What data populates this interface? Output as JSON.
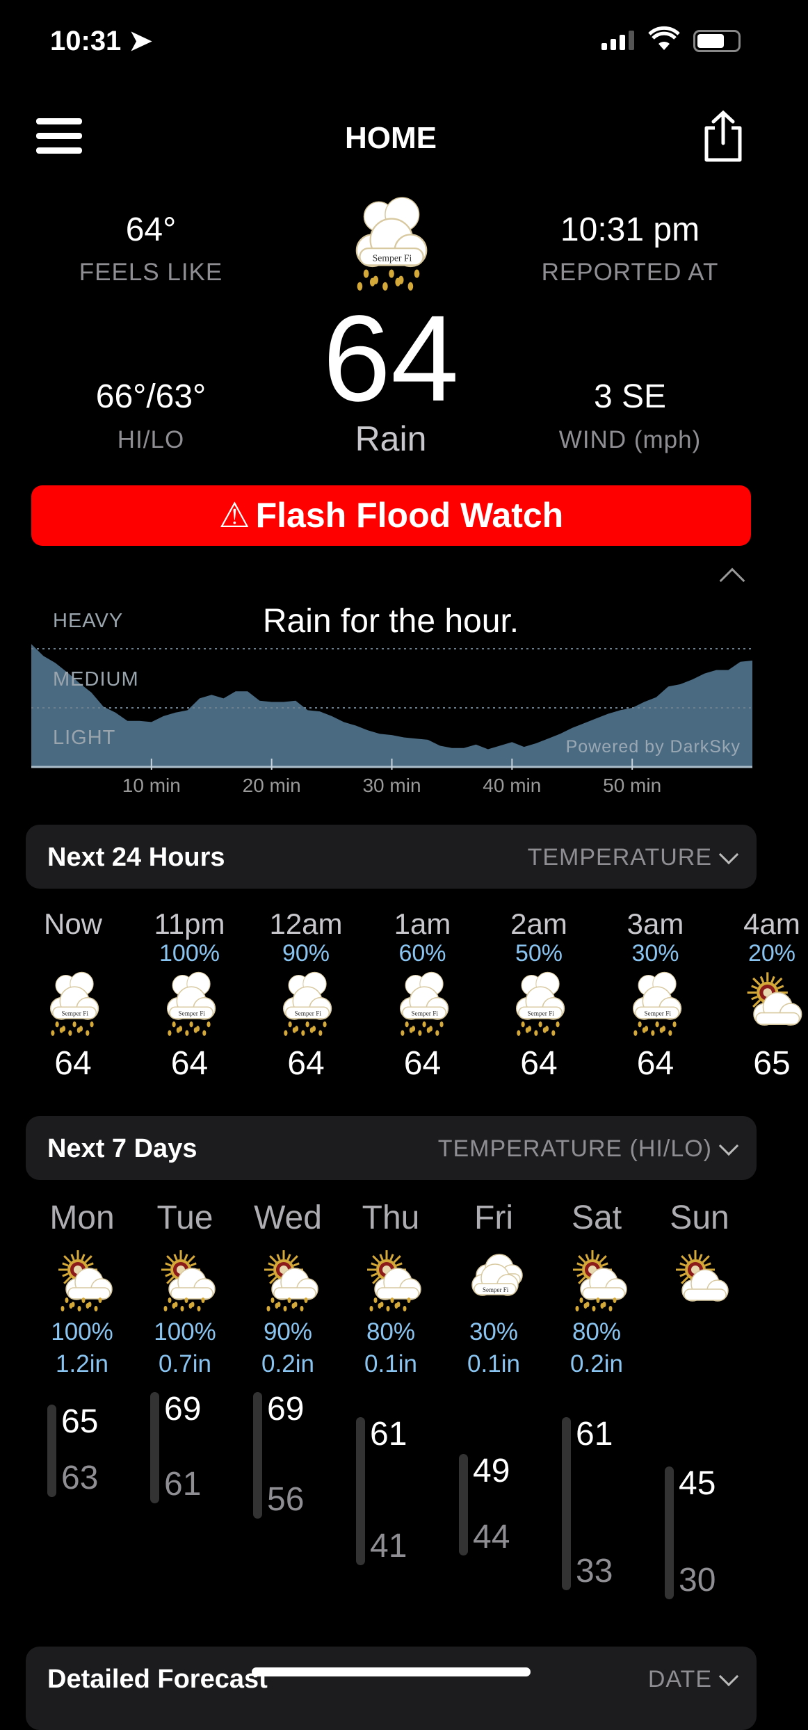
{
  "status_bar": {
    "time": "10:31",
    "icons": [
      "location-arrow-icon",
      "signal-icon",
      "wifi-icon",
      "battery-icon"
    ]
  },
  "header": {
    "title": "HOME",
    "menu_icon": "hamburger-menu-icon",
    "share_icon": "share-icon"
  },
  "current": {
    "feels_like": "64°",
    "feels_like_label": "FEELS LIKE",
    "reported_at": "10:31 pm",
    "reported_at_label": "REPORTED AT",
    "temperature": "64",
    "condition": "Rain",
    "icon": "rain-cloud",
    "hi_lo": "66°/63°",
    "hi_lo_label": "HI/LO",
    "wind": "3 SE",
    "wind_label": "WIND (mph)"
  },
  "icon_logo_text": "Semper Fi",
  "alert": {
    "icon": "warning-triangle-icon",
    "symbol": "⚠",
    "text": "Flash Flood Watch",
    "color": "#ff0000"
  },
  "precip_chart": {
    "chart_data": {
      "type": "area",
      "title": "Rain for the hour.",
      "y_levels": [
        "HEAVY",
        "MEDIUM",
        "LIGHT"
      ],
      "x_ticks": [
        "10 min",
        "20 min",
        "30 min",
        "40 min",
        "50 min"
      ],
      "x": [
        0,
        1,
        2,
        3,
        4,
        5,
        6,
        7,
        8,
        9,
        10,
        11,
        12,
        13,
        14,
        15,
        16,
        17,
        18,
        19,
        20,
        21,
        22,
        23,
        24,
        25,
        26,
        27,
        28,
        29,
        30,
        31,
        32,
        33,
        34,
        35,
        36,
        37,
        38,
        39,
        40,
        41,
        42,
        43,
        44,
        45,
        46,
        47,
        48,
        49,
        50,
        51,
        52,
        53,
        54,
        55,
        56,
        57,
        58,
        59,
        60
      ],
      "intensity": [
        1.04,
        0.94,
        0.88,
        0.8,
        0.71,
        0.63,
        0.51,
        0.46,
        0.39,
        0.39,
        0.38,
        0.43,
        0.46,
        0.48,
        0.58,
        0.61,
        0.58,
        0.64,
        0.64,
        0.56,
        0.55,
        0.55,
        0.56,
        0.48,
        0.47,
        0.43,
        0.38,
        0.35,
        0.31,
        0.28,
        0.27,
        0.25,
        0.24,
        0.23,
        0.18,
        0.16,
        0.16,
        0.19,
        0.15,
        0.18,
        0.21,
        0.17,
        0.2,
        0.24,
        0.28,
        0.33,
        0.37,
        0.41,
        0.45,
        0.48,
        0.5,
        0.55,
        0.59,
        0.68,
        0.7,
        0.74,
        0.79,
        0.82,
        0.82,
        0.89,
        0.9
      ],
      "xlim": [
        0,
        60
      ],
      "fill_color": "#4a6a82",
      "credit": "Powered by DarkSky"
    },
    "collapse_icon": "chevron-up-icon"
  },
  "hourly": {
    "title": "Next 24 Hours",
    "selector": "TEMPERATURE",
    "items": [
      {
        "label": "Now",
        "pct": "",
        "icon": "rain-cloud",
        "temp": "64"
      },
      {
        "label": "11pm",
        "pct": "100%",
        "icon": "rain-cloud",
        "temp": "64"
      },
      {
        "label": "12am",
        "pct": "90%",
        "icon": "rain-cloud",
        "temp": "64"
      },
      {
        "label": "1am",
        "pct": "60%",
        "icon": "rain-cloud",
        "temp": "64"
      },
      {
        "label": "2am",
        "pct": "50%",
        "icon": "rain-cloud",
        "temp": "64"
      },
      {
        "label": "3am",
        "pct": "30%",
        "icon": "rain-cloud",
        "temp": "64"
      },
      {
        "label": "4am",
        "pct": "20%",
        "icon": "sun-cloud",
        "temp": "65"
      }
    ]
  },
  "daily": {
    "title": "Next 7 Days",
    "selector": "TEMPERATURE (HI/LO)",
    "items": [
      {
        "label": "Mon",
        "icon": "sun-rain",
        "pct": "100%",
        "amount": "1.2in",
        "hi": 65,
        "lo": 63
      },
      {
        "label": "Tue",
        "icon": "sun-rain",
        "pct": "100%",
        "amount": "0.7in",
        "hi": 69,
        "lo": 61
      },
      {
        "label": "Wed",
        "icon": "sun-rain",
        "pct": "90%",
        "amount": "0.2in",
        "hi": 69,
        "lo": 56
      },
      {
        "label": "Thu",
        "icon": "sun-rain",
        "pct": "80%",
        "amount": "0.1in",
        "hi": 61,
        "lo": 41
      },
      {
        "label": "Fri",
        "icon": "cloud",
        "pct": "30%",
        "amount": "0.1in",
        "hi": 49,
        "lo": 44
      },
      {
        "label": "Sat",
        "icon": "sun-rain",
        "pct": "80%",
        "amount": "0.2in",
        "hi": 61,
        "lo": 33
      },
      {
        "label": "Sun",
        "icon": "sun-cloud",
        "pct": "",
        "amount": "",
        "hi": 45,
        "lo": 30
      }
    ]
  },
  "detailed": {
    "title": "Detailed Forecast",
    "selector": "DATE"
  }
}
